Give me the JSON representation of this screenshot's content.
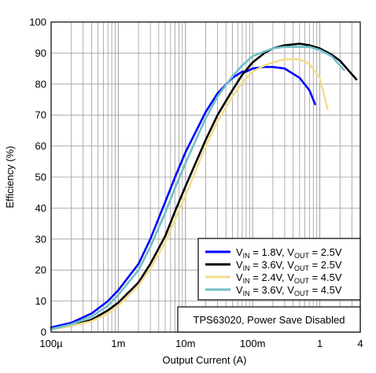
{
  "chart_data": {
    "type": "line",
    "title": "",
    "xlabel": "Output Current (A)",
    "ylabel": "Efficiency (%)",
    "x_scale": "log",
    "xlim": [
      0.0001,
      4
    ],
    "ylim": [
      0,
      100
    ],
    "x_ticks": [
      {
        "value": 0.0001,
        "label": "100µ"
      },
      {
        "value": 0.001,
        "label": "1m"
      },
      {
        "value": 0.01,
        "label": "10m"
      },
      {
        "value": 0.1,
        "label": "100m"
      },
      {
        "value": 1,
        "label": "1"
      },
      {
        "value": 4,
        "label": "4"
      }
    ],
    "y_ticks": [
      0,
      10,
      20,
      30,
      40,
      50,
      60,
      70,
      80,
      90,
      100
    ],
    "grid": true,
    "legend_position": "bottom-right",
    "annotation": "TPS63020, Power Save Disabled",
    "series": [
      {
        "legend": {
          "vin_sub": "IN",
          "vin_val": "1.8V",
          "vout_sub": "OUT",
          "vout_val": "2.5V"
        },
        "color": "#0000ff",
        "x": [
          0.0001,
          0.0002,
          0.0004,
          0.0007,
          0.001,
          0.002,
          0.003,
          0.005,
          0.007,
          0.01,
          0.02,
          0.03,
          0.05,
          0.07,
          0.08,
          0.1,
          0.15,
          0.2,
          0.3,
          0.5,
          0.7,
          0.85
        ],
        "y": [
          1.5,
          3,
          6,
          10,
          13.5,
          22,
          30,
          42,
          50,
          58,
          71,
          77,
          82,
          84,
          84,
          85,
          85.5,
          85.5,
          85,
          82,
          78,
          73.5
        ]
      },
      {
        "legend": {
          "vin_sub": "IN",
          "vin_val": "3.6V",
          "vout_sub": "OUT",
          "vout_val": "2.5V"
        },
        "color": "#000000",
        "x": [
          0.0001,
          0.0002,
          0.0004,
          0.0007,
          0.001,
          0.002,
          0.003,
          0.005,
          0.007,
          0.01,
          0.02,
          0.03,
          0.05,
          0.07,
          0.1,
          0.15,
          0.2,
          0.3,
          0.5,
          0.7,
          1,
          1.5,
          2,
          3.5
        ],
        "y": [
          1,
          2,
          4,
          7,
          9.5,
          16,
          22,
          31,
          39,
          47,
          62,
          70,
          78,
          83,
          87,
          90,
          91.5,
          92.5,
          93,
          92.5,
          91.5,
          89.5,
          87.5,
          81.5
        ]
      },
      {
        "legend": {
          "vin_sub": "IN",
          "vin_val": "2.4V",
          "vout_sub": "OUT",
          "vout_val": "4.5V"
        },
        "color": "#f4dd8f",
        "x": [
          0.0001,
          0.0002,
          0.0004,
          0.0007,
          0.001,
          0.002,
          0.003,
          0.005,
          0.007,
          0.01,
          0.02,
          0.03,
          0.05,
          0.07,
          0.1,
          0.15,
          0.2,
          0.3,
          0.5,
          0.7,
          1,
          1.3
        ],
        "y": [
          1,
          2,
          3.5,
          6,
          8.5,
          15,
          20.5,
          29,
          36.5,
          44,
          60,
          68,
          76,
          80.5,
          84,
          86,
          87,
          88,
          88,
          86.5,
          82,
          72
        ]
      },
      {
        "legend": {
          "vin_sub": "IN",
          "vin_val": "3.6V",
          "vout_sub": "OUT",
          "vout_val": "4.5V"
        },
        "color": "#6fbfc8",
        "x": [
          0.0001,
          0.0002,
          0.0004,
          0.0007,
          0.001,
          0.002,
          0.003,
          0.005,
          0.007,
          0.01,
          0.02,
          0.03,
          0.05,
          0.07,
          0.1,
          0.15,
          0.2,
          0.3,
          0.5,
          0.7,
          1,
          1.5,
          2.3
        ],
        "y": [
          1,
          2.5,
          5,
          8.5,
          12,
          20,
          27.5,
          38.5,
          46.5,
          54.5,
          69,
          76,
          82.5,
          86,
          89,
          90.5,
          91.5,
          92,
          92,
          92,
          91,
          89,
          84.5
        ]
      }
    ]
  }
}
